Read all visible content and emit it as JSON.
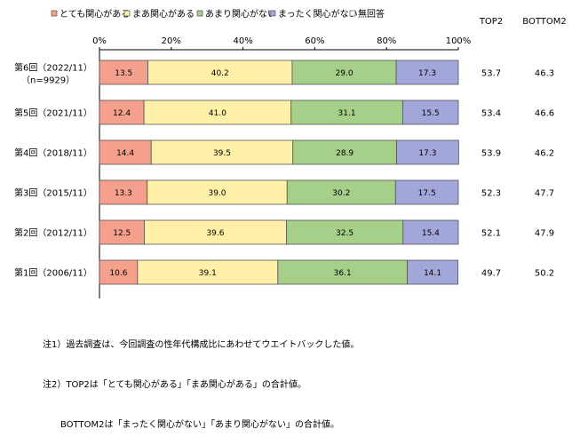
{
  "chart_data": {
    "type": "bar",
    "orientation": "horizontal",
    "stacked": true,
    "title": "",
    "xlabel": "",
    "ylabel": "",
    "xlim": [
      0,
      100
    ],
    "x_ticks": [
      "0%",
      "20%",
      "40%",
      "60%",
      "80%",
      "100%"
    ],
    "legend_position": "top",
    "grid": false,
    "categories": [
      {
        "label": "第6回（2022/11）",
        "sublabel": "（n=9929）"
      },
      {
        "label": "第5回（2021/11）",
        "sublabel": ""
      },
      {
        "label": "第4回（2018/11）",
        "sublabel": ""
      },
      {
        "label": "第3回（2015/11）",
        "sublabel": ""
      },
      {
        "label": "第2回（2012/11）",
        "sublabel": ""
      },
      {
        "label": "第1回（2006/11）",
        "sublabel": ""
      }
    ],
    "series": [
      {
        "name": "とても関心がある",
        "color": "#f4a08c",
        "values": [
          13.5,
          12.4,
          14.4,
          13.3,
          12.5,
          10.6
        ]
      },
      {
        "name": "まあ関心がある",
        "color": "#fff0a8",
        "values": [
          40.2,
          41.0,
          39.5,
          39.0,
          39.6,
          39.1
        ]
      },
      {
        "name": "あまり関心がない",
        "color": "#a6cf8a",
        "values": [
          29.0,
          31.1,
          28.9,
          30.2,
          32.5,
          36.1
        ]
      },
      {
        "name": "まったく関心がない",
        "color": "#a3a6d8",
        "values": [
          17.3,
          15.5,
          17.3,
          17.5,
          15.4,
          14.1
        ]
      },
      {
        "name": "無回答",
        "color": "#ffffff",
        "values": [
          0,
          0,
          0,
          0,
          0,
          0
        ]
      }
    ],
    "summary_columns": [
      {
        "name": "TOP2",
        "values": [
          53.7,
          53.4,
          53.9,
          52.3,
          52.1,
          49.7
        ]
      },
      {
        "name": "BOTTOM2",
        "values": [
          46.3,
          46.6,
          46.2,
          47.7,
          47.9,
          50.2
        ]
      }
    ]
  },
  "notes": {
    "line1": "注1）過去調査は、今回調査の性年代構成比にあわせてウエイトバックした値。",
    "line2": "注2）TOP2は「とても関心がある」「まあ関心がある」の合計値。",
    "line3": "　　BOTTOM2は「まったく関心がない」「あまり関心がない」の合計値。"
  }
}
